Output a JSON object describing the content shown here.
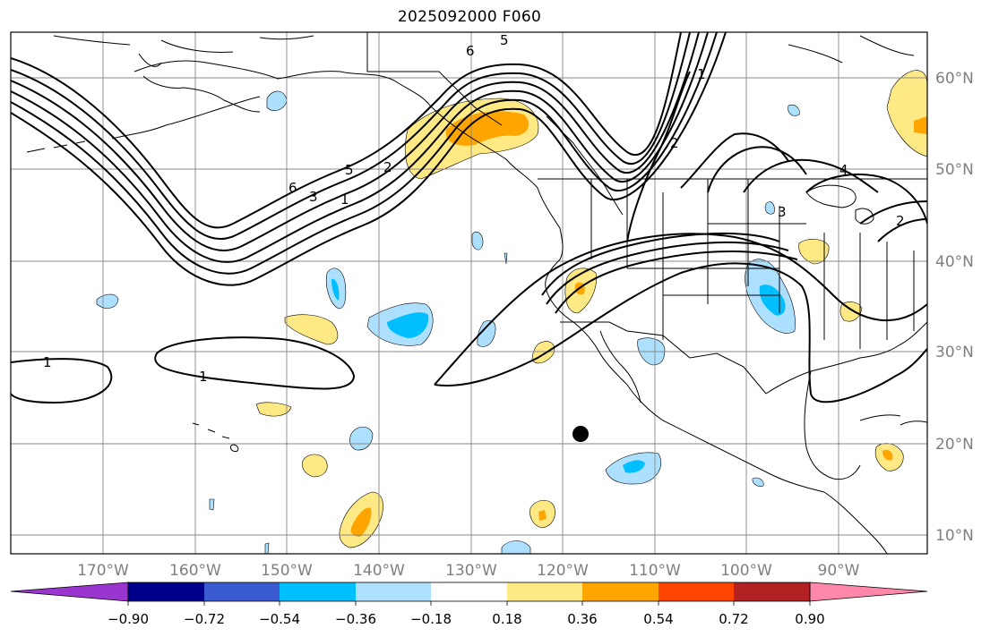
{
  "title": "2025092000 F060",
  "map": {
    "longitude_labels": [
      "170°W",
      "160°W",
      "150°W",
      "140°W",
      "130°W",
      "120°W",
      "110°W",
      "100°W",
      "90°W"
    ],
    "latitude_labels": [
      "60°N",
      "50°N",
      "40°N",
      "30°N",
      "20°N",
      "10°N"
    ],
    "contour_labels": [
      "6",
      "5",
      "6",
      "3",
      "5",
      "1",
      "2",
      "1",
      "2",
      "4",
      "3",
      "2",
      "1",
      "1"
    ],
    "marker_label": "storm-center",
    "marker_position": {
      "lon": -117.8,
      "lat": 21.0
    }
  },
  "colorbar": {
    "tick_labels": [
      "−0.90",
      "−0.72",
      "−0.54",
      "−0.36",
      "−0.18",
      "0.18",
      "0.36",
      "0.54",
      "0.72",
      "0.90"
    ],
    "colors": [
      "#9a35d0",
      "#00008b",
      "#3a5bcf",
      "#00bfff",
      "#ade0ff",
      "#ffffff",
      "#ffe985",
      "#ffa500",
      "#ff4500",
      "#b22222",
      "#ff88aa"
    ]
  },
  "colors": {
    "contour": "#000000",
    "grid": "#888888",
    "land_outline": "#000000"
  }
}
